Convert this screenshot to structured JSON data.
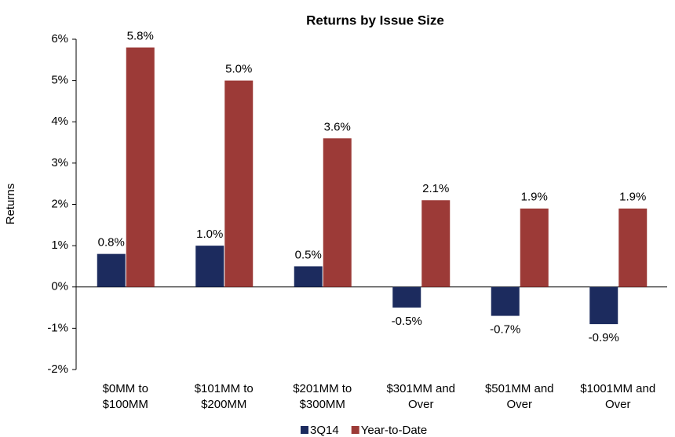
{
  "chart_data": {
    "type": "bar",
    "title": "Returns by Issue Size",
    "ylabel": "Returns",
    "categories": [
      "$0MM to\n$100MM",
      "$101MM to\n$200MM",
      "$201MM to\n$300MM",
      "$301MM and\nOver",
      "$501MM and\nOver",
      "$1001MM and\nOver"
    ],
    "series": [
      {
        "name": "3Q14",
        "color": "#1c2b5e",
        "values": [
          0.8,
          1.0,
          0.5,
          -0.5,
          -0.7,
          -0.9
        ],
        "value_labels": [
          "0.8%",
          "1.0%",
          "0.5%",
          "-0.5%",
          "-0.7%",
          "-0.9%"
        ]
      },
      {
        "name": "Year-to-Date",
        "color": "#9c3a37",
        "values": [
          5.8,
          5.0,
          3.6,
          2.1,
          1.9,
          1.9
        ],
        "value_labels": [
          "5.8%",
          "5.0%",
          "3.6%",
          "2.1%",
          "1.9%",
          "1.9%"
        ]
      }
    ],
    "ylim": [
      -2,
      6
    ],
    "yticks": [
      {
        "value": -2,
        "label": "-2%"
      },
      {
        "value": -1,
        "label": "-1%"
      },
      {
        "value": 0,
        "label": "0%"
      },
      {
        "value": 1,
        "label": "1%"
      },
      {
        "value": 2,
        "label": "2%"
      },
      {
        "value": 3,
        "label": "3%"
      },
      {
        "value": 4,
        "label": "4%"
      },
      {
        "value": 5,
        "label": "5%"
      },
      {
        "value": 6,
        "label": "6%"
      }
    ],
    "grid": false,
    "legend": "bottom"
  }
}
